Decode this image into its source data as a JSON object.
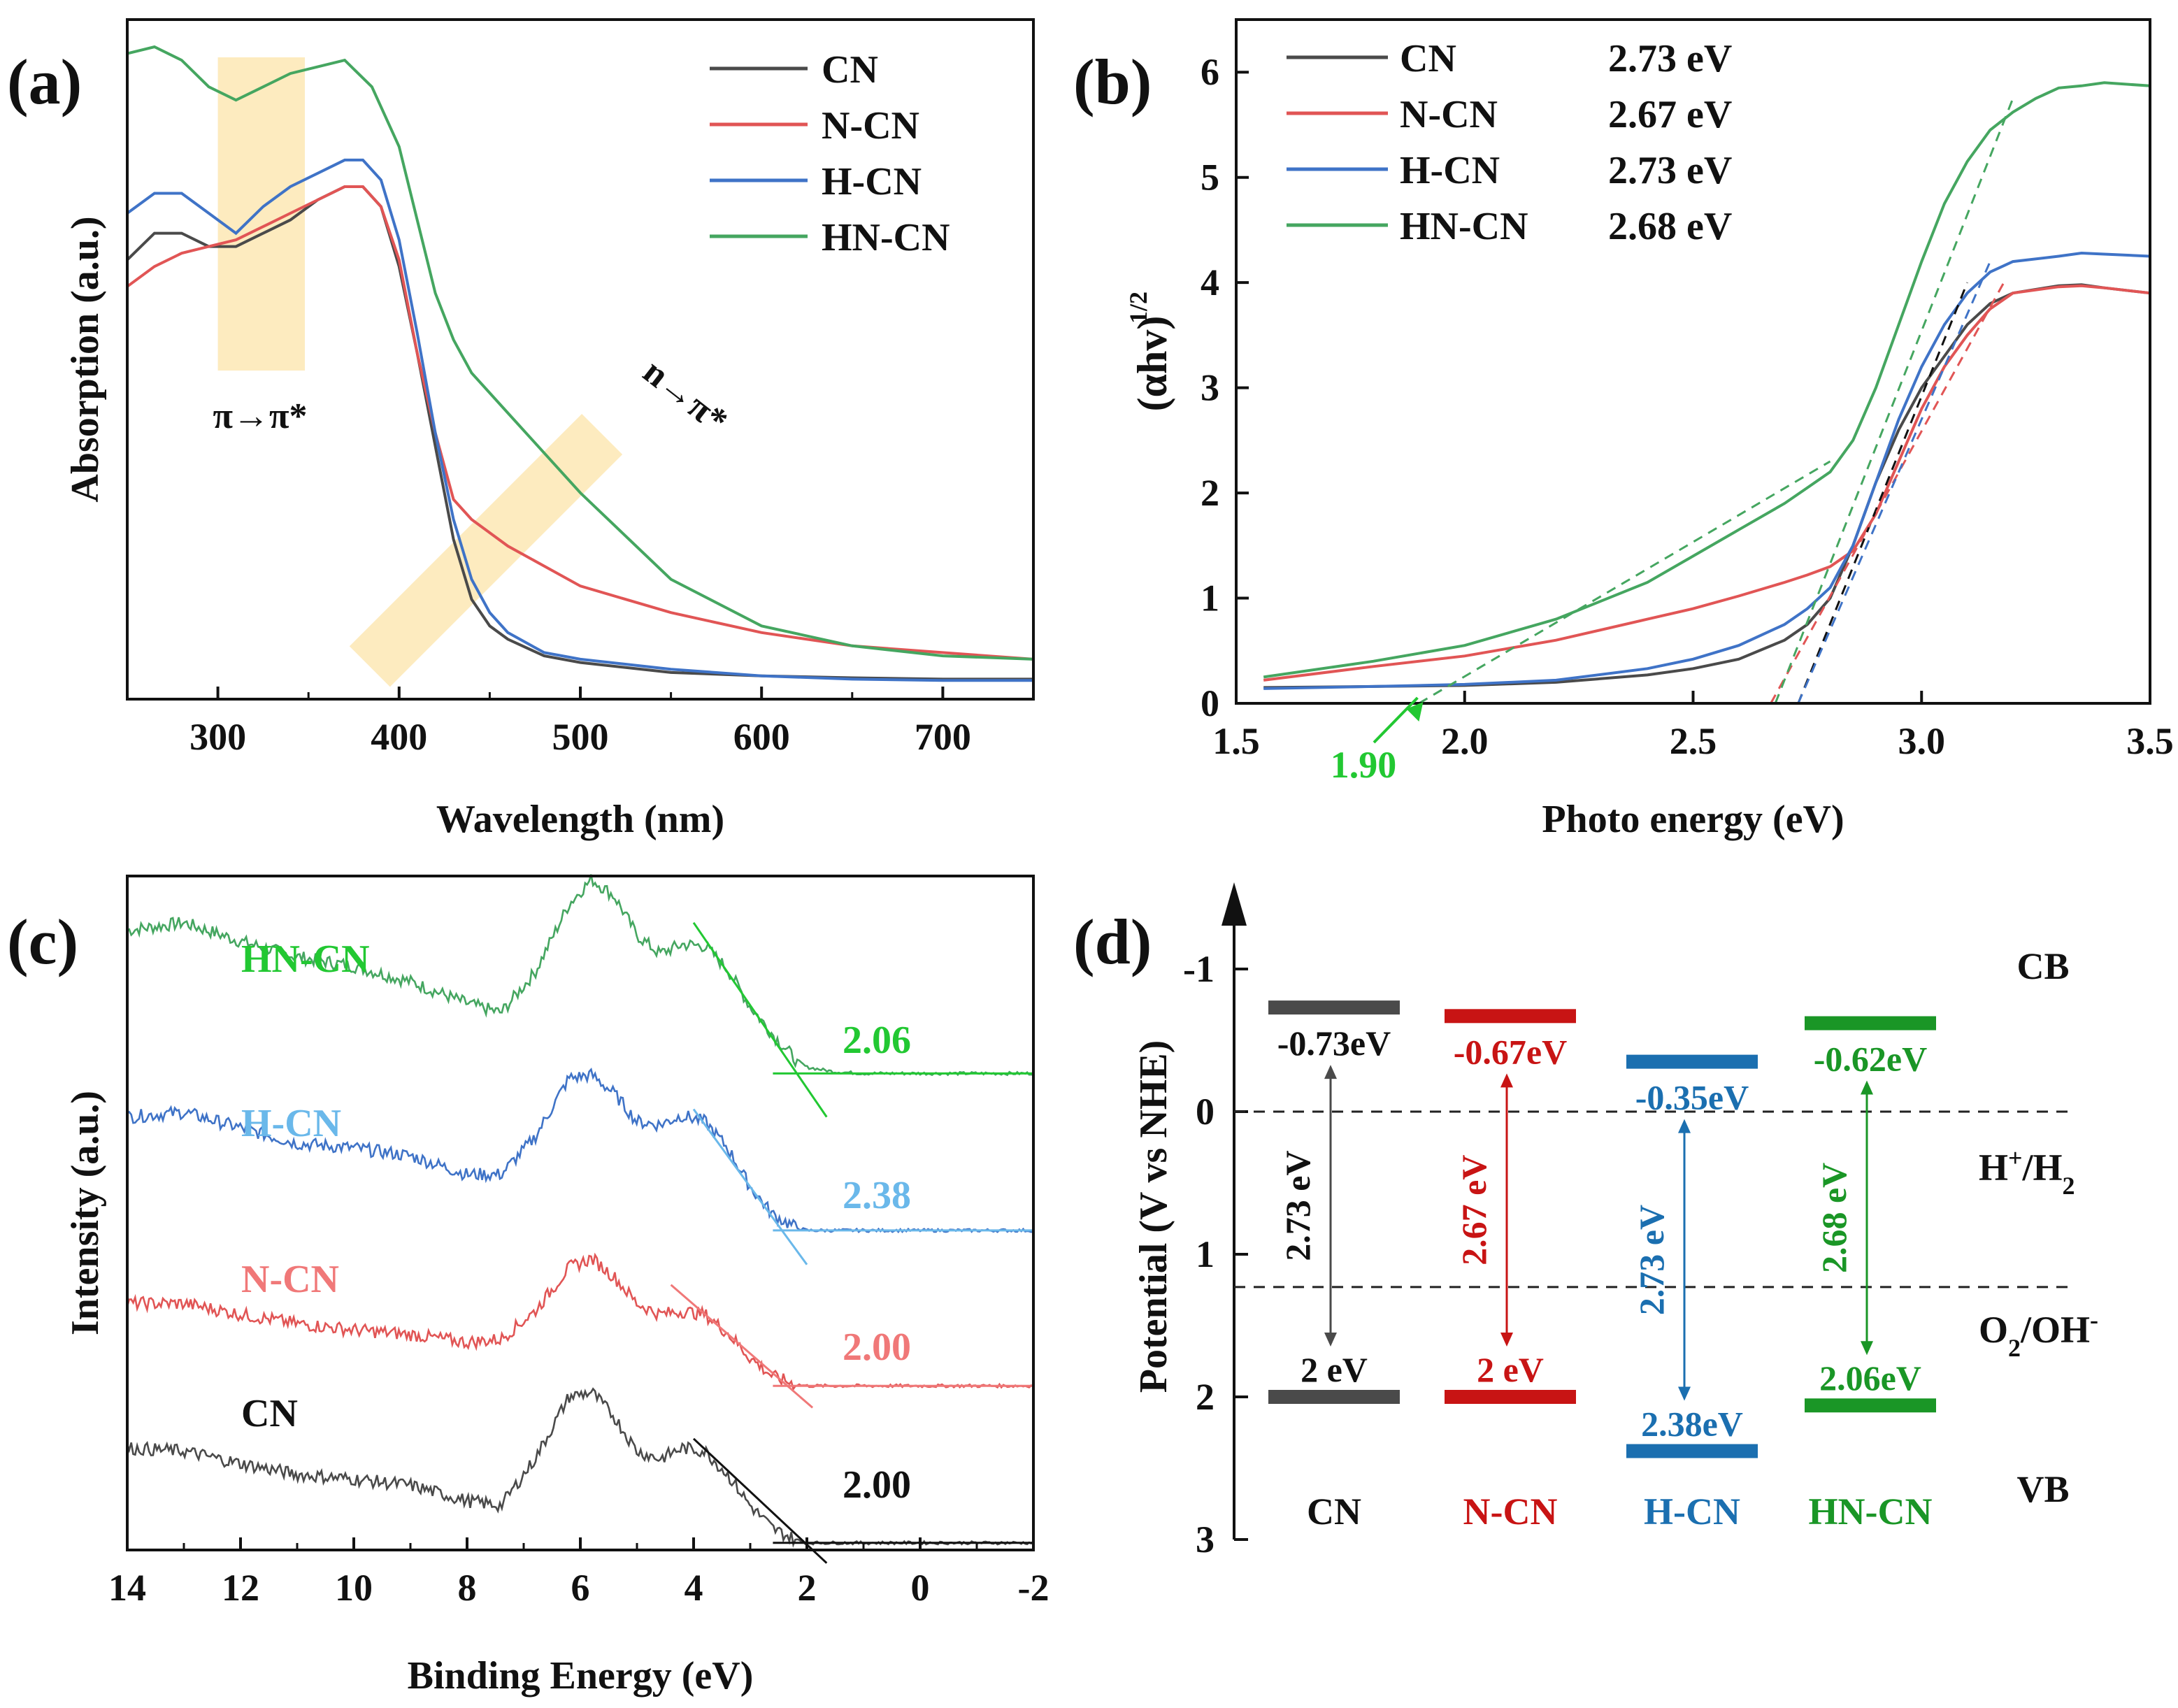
{
  "colors": {
    "CN": "#4a4a4a",
    "N-CN": "#e15555",
    "H-CN": "#3f73c7",
    "HN-CN": "#45a660"
  },
  "chart_data": [
    {
      "panel": "(a)",
      "type": "line",
      "title": "",
      "xlabel": "Wavelength (nm)",
      "ylabel": "Absorption (a.u.)",
      "xlim": [
        250,
        750
      ],
      "ylim": [
        0,
        1
      ],
      "xticks": [
        300,
        400,
        500,
        600,
        700
      ],
      "y_tick_labels": false,
      "legend": {
        "placement": "top-right",
        "entries": [
          "CN",
          "N-CN",
          "H-CN",
          "HN-CN"
        ]
      },
      "annotations": [
        {
          "text": "π→π*",
          "x_range": [
            300,
            348
          ]
        },
        {
          "text": "n→π*",
          "x_center": 480
        }
      ],
      "series": [
        {
          "name": "CN",
          "color": "#4a4a4a",
          "x": [
            250,
            265,
            280,
            295,
            310,
            325,
            340,
            355,
            370,
            380,
            390,
            400,
            410,
            420,
            430,
            440,
            450,
            460,
            480,
            500,
            550,
            600,
            650,
            700,
            750
          ],
          "y": [
            0.66,
            0.7,
            0.7,
            0.68,
            0.68,
            0.7,
            0.72,
            0.75,
            0.77,
            0.77,
            0.74,
            0.65,
            0.52,
            0.38,
            0.24,
            0.15,
            0.11,
            0.09,
            0.065,
            0.055,
            0.04,
            0.035,
            0.032,
            0.03,
            0.03
          ]
        },
        {
          "name": "N-CN",
          "color": "#e15555",
          "x": [
            250,
            265,
            280,
            295,
            310,
            325,
            340,
            355,
            370,
            380,
            390,
            400,
            410,
            420,
            430,
            440,
            450,
            460,
            480,
            500,
            550,
            600,
            650,
            700,
            750
          ],
          "y": [
            0.62,
            0.65,
            0.67,
            0.68,
            0.69,
            0.71,
            0.73,
            0.75,
            0.77,
            0.77,
            0.74,
            0.66,
            0.52,
            0.4,
            0.3,
            0.27,
            0.25,
            0.23,
            0.2,
            0.17,
            0.13,
            0.1,
            0.08,
            0.07,
            0.06
          ]
        },
        {
          "name": "H-CN",
          "color": "#3f73c7",
          "x": [
            250,
            265,
            280,
            295,
            310,
            325,
            340,
            355,
            370,
            380,
            390,
            400,
            410,
            420,
            430,
            440,
            450,
            460,
            480,
            500,
            550,
            600,
            650,
            700,
            750
          ],
          "y": [
            0.73,
            0.76,
            0.76,
            0.73,
            0.7,
            0.74,
            0.77,
            0.79,
            0.81,
            0.81,
            0.78,
            0.69,
            0.55,
            0.4,
            0.27,
            0.18,
            0.13,
            0.1,
            0.07,
            0.06,
            0.045,
            0.035,
            0.03,
            0.028,
            0.028
          ]
        },
        {
          "name": "HN-CN",
          "color": "#45a660",
          "x": [
            250,
            265,
            280,
            295,
            310,
            325,
            340,
            355,
            370,
            385,
            400,
            410,
            420,
            430,
            440,
            460,
            480,
            500,
            550,
            600,
            650,
            700,
            750
          ],
          "y": [
            0.97,
            0.98,
            0.96,
            0.92,
            0.9,
            0.92,
            0.94,
            0.95,
            0.96,
            0.92,
            0.83,
            0.72,
            0.61,
            0.54,
            0.49,
            0.43,
            0.37,
            0.31,
            0.18,
            0.11,
            0.08,
            0.065,
            0.06
          ]
        }
      ]
    },
    {
      "panel": "(b)",
      "type": "line",
      "title": "",
      "xlabel": "Photo energy (eV)",
      "ylabel": "(αhv)",
      "ylabel_sup": "1/2",
      "xlim": [
        1.5,
        3.5
      ],
      "ylim": [
        0,
        6.5
      ],
      "xticks": [
        "1.5",
        "2.0",
        "2.5",
        "3.0",
        "3.5"
      ],
      "yticks": [
        "0",
        "1",
        "2",
        "3",
        "4",
        "5",
        "6"
      ],
      "legend": {
        "placement": "top-left",
        "entries": [
          {
            "name": "CN",
            "value": "2.73 eV"
          },
          {
            "name": "N-CN",
            "value": "2.67 eV"
          },
          {
            "name": "H-CN",
            "value": "2.73 eV"
          },
          {
            "name": "HN-CN",
            "value": "2.68 eV"
          }
        ]
      },
      "annotations": [
        {
          "text": "1.90",
          "x": 1.9,
          "y": 0
        }
      ],
      "tangent_lines": [
        {
          "name": "CN",
          "color": "#111111",
          "x": [
            2.73,
            3.1
          ],
          "y": [
            0,
            4.0
          ]
        },
        {
          "name": "N-CN",
          "color": "#e15555",
          "x": [
            2.67,
            3.18
          ],
          "y": [
            0,
            4.0
          ]
        },
        {
          "name": "H-CN",
          "color": "#3f73c7",
          "x": [
            2.73,
            3.15
          ],
          "y": [
            0,
            4.2
          ]
        },
        {
          "name": "HN-CN",
          "color": "#45a660",
          "x": [
            2.68,
            3.2
          ],
          "y": [
            0,
            5.75
          ]
        },
        {
          "name": "HN-CN",
          "color": "#45a660",
          "x": [
            1.9,
            2.8
          ],
          "y": [
            0,
            2.3
          ]
        }
      ],
      "series": [
        {
          "name": "CN",
          "color": "#4a4a4a",
          "x": [
            1.56,
            1.8,
            2.0,
            2.2,
            2.4,
            2.5,
            2.6,
            2.7,
            2.75,
            2.8,
            2.85,
            2.9,
            2.95,
            3.0,
            3.05,
            3.1,
            3.15,
            3.2,
            3.3,
            3.35,
            3.4,
            3.5
          ],
          "y": [
            0.15,
            0.16,
            0.17,
            0.2,
            0.27,
            0.33,
            0.42,
            0.6,
            0.75,
            1.0,
            1.5,
            2.1,
            2.6,
            3.0,
            3.3,
            3.6,
            3.8,
            3.9,
            3.97,
            3.98,
            3.95,
            3.9
          ]
        },
        {
          "name": "N-CN",
          "color": "#e15555",
          "x": [
            1.56,
            1.8,
            2.0,
            2.2,
            2.4,
            2.5,
            2.6,
            2.7,
            2.75,
            2.8,
            2.85,
            2.9,
            2.95,
            3.0,
            3.05,
            3.1,
            3.15,
            3.2,
            3.3,
            3.35,
            3.4,
            3.5
          ],
          "y": [
            0.22,
            0.35,
            0.45,
            0.6,
            0.8,
            0.9,
            1.02,
            1.15,
            1.22,
            1.3,
            1.45,
            1.8,
            2.3,
            2.8,
            3.2,
            3.5,
            3.75,
            3.9,
            3.96,
            3.97,
            3.95,
            3.9
          ]
        },
        {
          "name": "H-CN",
          "color": "#3f73c7",
          "x": [
            1.56,
            1.8,
            2.0,
            2.2,
            2.4,
            2.5,
            2.6,
            2.7,
            2.75,
            2.8,
            2.85,
            2.9,
            2.95,
            3.0,
            3.05,
            3.1,
            3.15,
            3.2,
            3.3,
            3.35,
            3.4,
            3.5
          ],
          "y": [
            0.14,
            0.16,
            0.18,
            0.22,
            0.33,
            0.42,
            0.55,
            0.75,
            0.9,
            1.1,
            1.5,
            2.1,
            2.7,
            3.2,
            3.6,
            3.9,
            4.1,
            4.2,
            4.25,
            4.28,
            4.27,
            4.25
          ]
        },
        {
          "name": "HN-CN",
          "color": "#45a660",
          "x": [
            1.56,
            1.8,
            2.0,
            2.2,
            2.4,
            2.5,
            2.6,
            2.7,
            2.75,
            2.8,
            2.85,
            2.9,
            2.95,
            3.0,
            3.05,
            3.1,
            3.15,
            3.2,
            3.25,
            3.3,
            3.35,
            3.4,
            3.5
          ],
          "y": [
            0.25,
            0.4,
            0.55,
            0.8,
            1.15,
            1.4,
            1.65,
            1.9,
            2.05,
            2.2,
            2.5,
            3.0,
            3.6,
            4.2,
            4.75,
            5.15,
            5.45,
            5.62,
            5.75,
            5.85,
            5.87,
            5.9,
            5.87
          ]
        }
      ]
    },
    {
      "panel": "(c)",
      "type": "line",
      "title": "",
      "xlabel": "Binding Energy (eV)",
      "ylabel": "Intensity (a.u.)",
      "xlim": [
        14,
        -2
      ],
      "ylim": [
        0,
        4.3
      ],
      "xticks": [
        "14",
        "12",
        "10",
        "8",
        "6",
        "4",
        "2",
        "0",
        "-2"
      ],
      "y_tick_labels": false,
      "series": [
        {
          "name": "HN-CN",
          "color": "#45a660",
          "label_color": "#22c832",
          "value": "2.06",
          "value_color": "#22c832",
          "offset": 3.0,
          "peak_scale": 1.0,
          "x": [
            14,
            13,
            12,
            11,
            10,
            9,
            8,
            7.4,
            6.8,
            6.2,
            5.8,
            5.4,
            5.0,
            4.6,
            4.2,
            3.8,
            3.4,
            3.0,
            2.6,
            2.2,
            2.0,
            1.5,
            1.0,
            0,
            -2
          ],
          "y": [
            0.95,
            1.0,
            0.88,
            0.78,
            0.72,
            0.62,
            0.48,
            0.42,
            0.68,
            1.12,
            1.28,
            1.17,
            0.92,
            0.8,
            0.86,
            0.85,
            0.7,
            0.46,
            0.28,
            0.12,
            0.07,
            0.04,
            0.03,
            0.03,
            0.03
          ],
          "tangent": {
            "x": [
              4.0,
              1.65
            ],
            "y": [
              1.0,
              -0.25
            ]
          },
          "baseline": {
            "x": [
              2.6,
              -2
            ],
            "y": [
              0.03,
              0.03
            ]
          }
        },
        {
          "name": "H-CN",
          "color": "#3f73c7",
          "label_color": "#6ab8ea",
          "value": "2.38",
          "value_color": "#6ab8ea",
          "offset": 2.0,
          "peak_scale": 1.0,
          "x": [
            14,
            13,
            12,
            11,
            10,
            9,
            8,
            7.4,
            6.8,
            6.2,
            5.8,
            5.4,
            5.0,
            4.6,
            4.2,
            3.8,
            3.4,
            3.0,
            2.6,
            2.2,
            2.0,
            1.5,
            1.0,
            0,
            -2
          ],
          "y": [
            0.75,
            0.78,
            0.68,
            0.58,
            0.55,
            0.5,
            0.38,
            0.38,
            0.62,
            1.0,
            1.02,
            0.9,
            0.72,
            0.7,
            0.76,
            0.72,
            0.55,
            0.3,
            0.12,
            0.04,
            0.02,
            0.02,
            0.02,
            0.02,
            0.02
          ],
          "tangent": {
            "x": [
              4.0,
              2.0
            ],
            "y": [
              0.8,
              -0.2
            ]
          },
          "baseline": {
            "x": [
              2.6,
              -2
            ],
            "y": [
              0.02,
              0.02
            ]
          }
        },
        {
          "name": "N-CN",
          "color": "#e15555",
          "label_color": "#f07878",
          "value": "2.00",
          "value_color": "#f07878",
          "offset": 1.0,
          "peak_scale": 1.0,
          "x": [
            14,
            13,
            12,
            11,
            10,
            9,
            8,
            7.4,
            6.8,
            6.2,
            5.8,
            5.4,
            5.0,
            4.6,
            4.2,
            3.8,
            3.4,
            3.0,
            2.6,
            2.2,
            2.0,
            1.5,
            1.0,
            0,
            -2
          ],
          "y": [
            0.55,
            0.55,
            0.48,
            0.42,
            0.38,
            0.35,
            0.3,
            0.32,
            0.5,
            0.78,
            0.84,
            0.72,
            0.55,
            0.48,
            0.5,
            0.48,
            0.36,
            0.2,
            0.08,
            0.03,
            0.02,
            0.02,
            0.02,
            0.02,
            0.02
          ],
          "tangent": {
            "x": [
              4.4,
              1.9
            ],
            "y": [
              0.67,
              -0.12
            ]
          },
          "baseline": {
            "x": [
              2.6,
              -2
            ],
            "y": [
              0.02,
              0.02
            ]
          }
        },
        {
          "name": "CN",
          "color": "#4a4a4a",
          "label_color": "#111111",
          "value": "2.00",
          "value_color": "#111111",
          "offset": 0.0,
          "peak_scale": 1.0,
          "x": [
            14,
            13,
            12,
            11,
            10,
            9,
            8,
            7.4,
            6.8,
            6.2,
            5.8,
            5.4,
            5.0,
            4.6,
            4.2,
            3.8,
            3.4,
            3.0,
            2.6,
            2.2,
            2.0,
            1.5,
            1.0,
            0,
            -2
          ],
          "y": [
            0.62,
            0.6,
            0.52,
            0.45,
            0.42,
            0.38,
            0.28,
            0.25,
            0.55,
            0.95,
            0.98,
            0.82,
            0.6,
            0.55,
            0.62,
            0.6,
            0.45,
            0.25,
            0.1,
            0.03,
            0.01,
            0.01,
            0.01,
            0.01,
            0.01
          ],
          "tangent": {
            "x": [
              4.0,
              1.65
            ],
            "y": [
              0.68,
              -0.12
            ]
          },
          "baseline": {
            "x": [
              2.6,
              -2
            ],
            "y": [
              0.01,
              0.01
            ]
          }
        }
      ]
    },
    {
      "panel": "(d)",
      "type": "bar",
      "title": "",
      "xlabel": "",
      "ylabel": "Potential (V vs NHE)",
      "ylim": [
        -1.5,
        3
      ],
      "yticks": [
        "-1",
        "0",
        "1",
        "2",
        "3"
      ],
      "reference_lines": [
        {
          "value": 0,
          "label": "H",
          "label_sup": "+",
          "label_mid": "/H",
          "label_sub": "2"
        },
        {
          "value": 1.23,
          "label": "O",
          "label_sub": "2",
          "label_mid": "/OH",
          "label_sup": "-"
        }
      ],
      "band_labels": {
        "top": "CB",
        "bottom": "VB"
      },
      "categories": [
        {
          "name": "CN",
          "color": "#4a4a4a",
          "text_color": "#111111",
          "cb": -0.73,
          "vb": 2.0,
          "cb_label": "-0.73eV",
          "vb_label": "2 eV",
          "gap_label": "2.73 eV"
        },
        {
          "name": "N-CN",
          "color": "#c81414",
          "text_color": "#c81414",
          "cb": -0.67,
          "vb": 2.0,
          "cb_label": "-0.67eV",
          "vb_label": "2 eV",
          "gap_label": "2.67 eV"
        },
        {
          "name": "H-CN",
          "color": "#1b6fb0",
          "text_color": "#1b6fb0",
          "cb": -0.35,
          "vb": 2.38,
          "cb_label": "-0.35eV",
          "vb_label": "2.38eV",
          "gap_label": "2.73 eV"
        },
        {
          "name": "HN-CN",
          "color": "#1a9626",
          "text_color": "#1a9626",
          "cb": -0.62,
          "vb": 2.06,
          "cb_label": "-0.62eV",
          "vb_label": "2.06eV",
          "gap_label": "2.68 eV"
        }
      ]
    }
  ],
  "panels": {
    "a": "(a)",
    "b": "(b)",
    "c": "(c)",
    "d": "(d)"
  },
  "annot_1_90_color": "#22c832"
}
